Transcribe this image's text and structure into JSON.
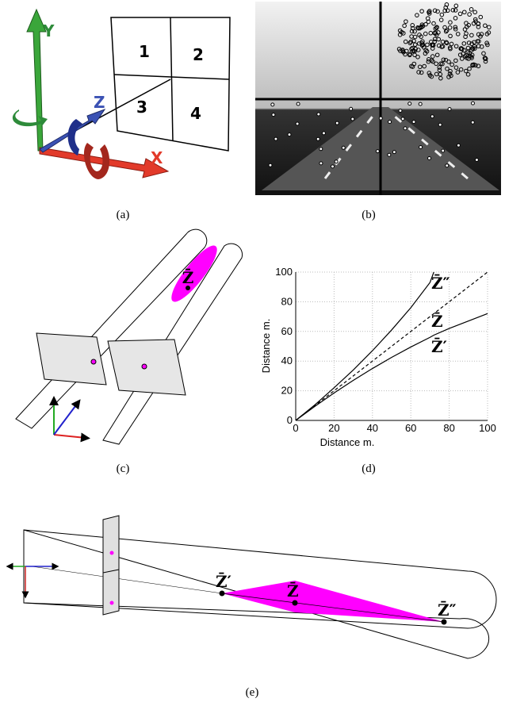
{
  "panel_a": {
    "caption": "(a)",
    "axis_labels": {
      "y": "Y",
      "z": "Z",
      "x": "X"
    },
    "cells": [
      "1",
      "2",
      "3",
      "4"
    ]
  },
  "panel_b": {
    "caption": "(b)"
  },
  "panel_c": {
    "caption": "(c)",
    "point_label": "Z̄"
  },
  "chart_data": {
    "type": "line",
    "caption": "(d)",
    "xlabel": "Distance m.",
    "ylabel": "Distance m.",
    "x": [
      0,
      10,
      20,
      30,
      40,
      50,
      60,
      70,
      72,
      80,
      90,
      100
    ],
    "series": [
      {
        "name": "Z̄″",
        "color": "#000000",
        "style": "solid",
        "values": [
          0,
          10.5,
          22,
          34,
          47,
          61,
          76,
          93,
          100,
          null,
          null,
          null
        ]
      },
      {
        "name": "Z̄",
        "color": "#000000",
        "style": "dashed",
        "values": [
          0,
          10,
          20,
          30,
          40,
          50,
          60,
          70,
          72,
          80,
          90,
          100
        ]
      },
      {
        "name": "Z̄′",
        "color": "#000000",
        "style": "solid",
        "values": [
          0,
          9.5,
          18.5,
          27,
          35,
          42.5,
          49.5,
          56,
          57.5,
          62,
          67,
          72
        ]
      }
    ],
    "xlim": [
      0,
      100
    ],
    "ylim": [
      0,
      100
    ],
    "xticks": [
      0,
      20,
      40,
      60,
      80,
      100
    ],
    "yticks": [
      0,
      20,
      40,
      60,
      80,
      100
    ],
    "grid": true
  },
  "panel_e": {
    "caption": "(e)",
    "point_labels": [
      "Z̄′",
      "Z̄",
      "Z̄″"
    ]
  }
}
